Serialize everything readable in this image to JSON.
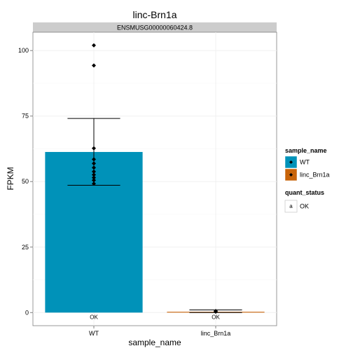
{
  "chart_data": {
    "type": "bar",
    "title": "linc-Brn1a",
    "facet_label": "ENSMUSG00000060424.8",
    "xlabel": "sample_name",
    "ylabel": "FPKM",
    "ylim": [
      -5,
      107
    ],
    "yticks": [
      0,
      25,
      50,
      75,
      100
    ],
    "categories": [
      "WT",
      "linc_Brn1a"
    ],
    "values": [
      61.3,
      0.3
    ],
    "error_bars": [
      {
        "low": 48.6,
        "high": 74.1
      },
      {
        "low": 0.0,
        "high": 1.0
      }
    ],
    "points": [
      {
        "category": "WT",
        "values": [
          102.0,
          94.3,
          62.7,
          58.5,
          56.9,
          55.3,
          53.8,
          52.6,
          51.5,
          50.5,
          49.2
        ]
      },
      {
        "category": "linc_Brn1a",
        "values": [
          0.3,
          0.6
        ]
      }
    ],
    "status_labels": [
      "OK",
      "OK"
    ],
    "colors": {
      "WT": "#0092B9",
      "linc_Brn1a": "#C8640A"
    },
    "legend": {
      "placement": "right",
      "fill_title": "sample_name",
      "fill_items": [
        "WT",
        "linc_Brn1a"
      ],
      "status_title": "quant_status",
      "status_items": [
        {
          "key": "a",
          "label": "OK"
        }
      ]
    },
    "grid": true
  }
}
